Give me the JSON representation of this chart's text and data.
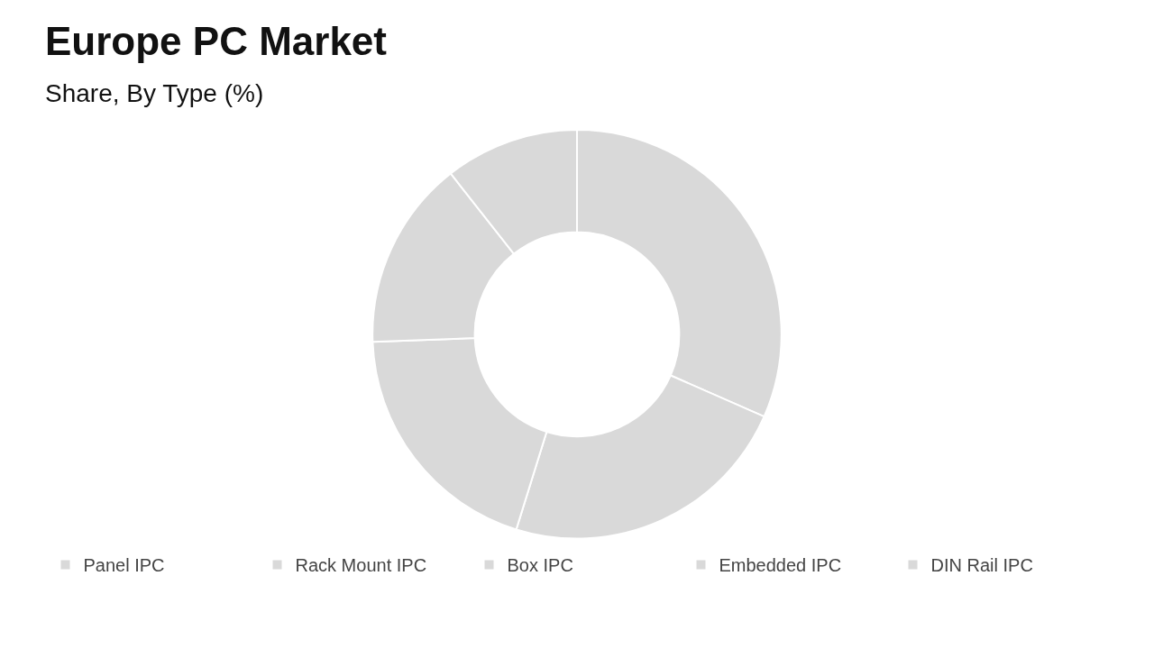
{
  "chart_data": {
    "type": "donut",
    "title": "Europe PC Market",
    "subtitle": "Share, By Type (%)",
    "categories": [
      "Panel IPC",
      "Rack Mount IPC",
      "Box IPC",
      "Embedded IPC",
      "DIN Rail IPC"
    ],
    "values": [
      31.6,
      23.2,
      19.6,
      15.0,
      10.6
    ],
    "colors": [
      "#d9d9d9",
      "#d9d9d9",
      "#d9d9d9",
      "#d9d9d9",
      "#d9d9d9"
    ],
    "legend": "bottom"
  }
}
